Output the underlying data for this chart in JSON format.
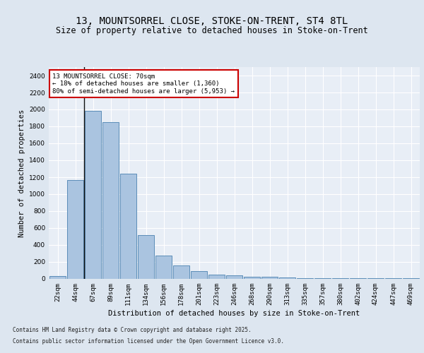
{
  "title": "13, MOUNTSORREL CLOSE, STOKE-ON-TRENT, ST4 8TL",
  "subtitle": "Size of property relative to detached houses in Stoke-on-Trent",
  "xlabel": "Distribution of detached houses by size in Stoke-on-Trent",
  "ylabel": "Number of detached properties",
  "categories": [
    "22sqm",
    "44sqm",
    "67sqm",
    "89sqm",
    "111sqm",
    "134sqm",
    "156sqm",
    "178sqm",
    "201sqm",
    "223sqm",
    "246sqm",
    "268sqm",
    "290sqm",
    "313sqm",
    "335sqm",
    "357sqm",
    "380sqm",
    "402sqm",
    "424sqm",
    "447sqm",
    "469sqm"
  ],
  "values": [
    30,
    1170,
    1980,
    1850,
    1240,
    515,
    275,
    155,
    90,
    50,
    45,
    25,
    22,
    15,
    5,
    10,
    5,
    5,
    5,
    5,
    5
  ],
  "bar_color": "#aac4e0",
  "bar_edge_color": "#5b8db8",
  "property_line_x": 1.5,
  "annotation_text": "13 MOUNTSORREL CLOSE: 70sqm\n← 18% of detached houses are smaller (1,360)\n80% of semi-detached houses are larger (5,953) →",
  "annotation_box_color": "#ffffff",
  "annotation_box_edge": "#cc0000",
  "footer1": "Contains HM Land Registry data © Crown copyright and database right 2025.",
  "footer2": "Contains public sector information licensed under the Open Government Licence v3.0.",
  "bg_color": "#dde6f0",
  "plot_bg_color": "#e8eef6",
  "grid_color": "#ffffff",
  "ylim": [
    0,
    2500
  ],
  "yticks": [
    0,
    200,
    400,
    600,
    800,
    1000,
    1200,
    1400,
    1600,
    1800,
    2000,
    2200,
    2400
  ],
  "title_fontsize": 10,
  "subtitle_fontsize": 8.5,
  "axis_label_fontsize": 7.5,
  "tick_fontsize": 6.5,
  "annot_fontsize": 6.5,
  "footer_fontsize": 5.5
}
